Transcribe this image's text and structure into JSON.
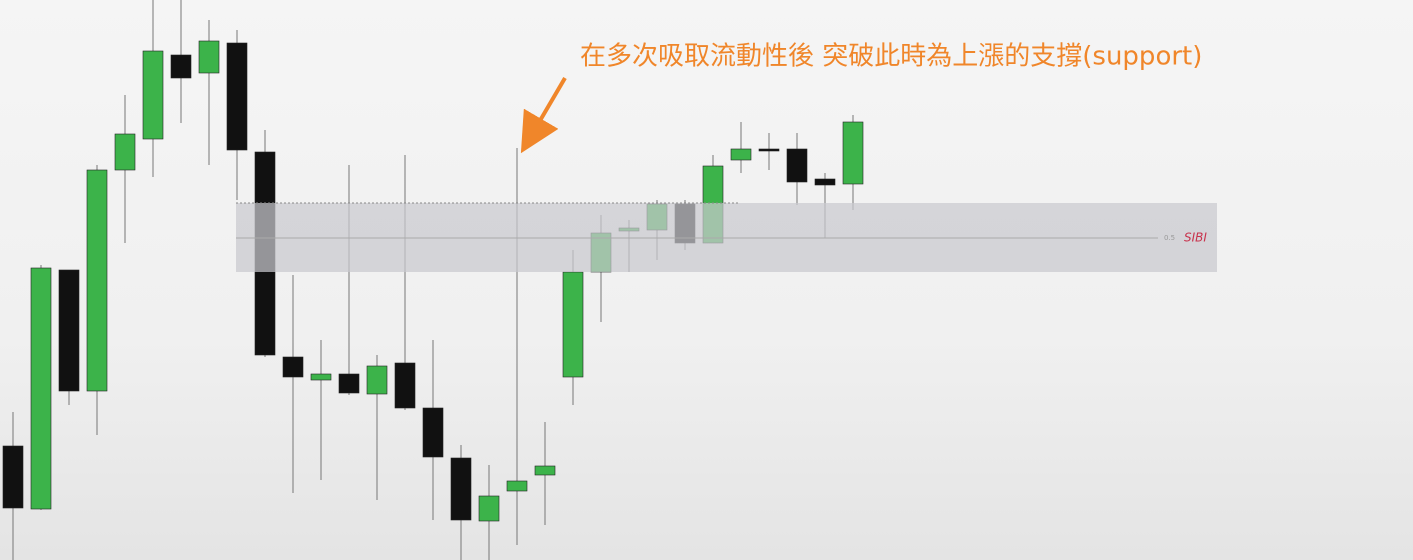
{
  "chart_data": {
    "type": "candlestick",
    "annotation": "在多次吸取流動性後 突破此時為上漲的支撐(support)",
    "ylim": [
      0,
      560
    ],
    "up_color": "#3cb34a",
    "down_color": "#111111",
    "open": [
      114,
      51,
      290,
      169,
      390,
      421,
      505,
      487,
      517,
      408,
      203,
      180,
      186,
      166,
      197,
      152,
      102,
      39,
      69,
      85,
      183,
      288,
      329,
      330,
      356,
      317,
      400,
      411,
      411,
      381,
      376
    ],
    "high": [
      148,
      295,
      290,
      395,
      465,
      560,
      560,
      540,
      530,
      430,
      285,
      220,
      395,
      205,
      405,
      220,
      115,
      95,
      412,
      138,
      310,
      345,
      340,
      360,
      360,
      405,
      438,
      427,
      427,
      387,
      445
    ],
    "low": [
      0,
      50,
      155,
      125,
      317,
      383,
      437,
      395,
      360,
      203,
      67,
      80,
      165,
      60,
      150,
      40,
      0,
      0,
      15,
      35,
      155,
      238,
      288,
      300,
      310,
      317,
      387,
      390,
      355,
      322,
      350
    ],
    "close": [
      52,
      292,
      169,
      390,
      426,
      509,
      482,
      519,
      410,
      205,
      183,
      186,
      167,
      194,
      152,
      103,
      40,
      64,
      79,
      94,
      288,
      327,
      332,
      356,
      317,
      394,
      411,
      410,
      378,
      375,
      438
    ],
    "zone": {
      "label": "SIBI",
      "level_label": "0.5",
      "top": 357,
      "bottom": 288,
      "mid": 322,
      "color": "#c9c9ce"
    }
  }
}
